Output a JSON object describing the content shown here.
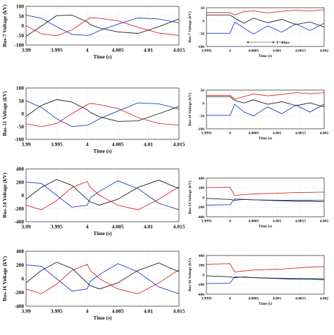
{
  "chart_data": [
    {
      "type": "line",
      "ylabel": "Bus-7 Voltage (kV)",
      "xlabel": "Time (s)",
      "xlim": [
        3.99,
        4.015
      ],
      "ylim": [
        -100,
        100
      ],
      "xticks": [
        "3.99",
        "3.995",
        "4",
        "4.005",
        "4.01",
        "4.015"
      ],
      "yticks": [
        "100",
        "50",
        "0",
        "-50",
        "-100"
      ],
      "grid": true,
      "series": [
        {
          "color": "#d62828",
          "x": [
            3.99,
            3.9925,
            3.995,
            3.9975,
            4.0,
            4.0005,
            4.002,
            4.005,
            4.0083,
            4.0117,
            4.015
          ],
          "y": [
            0,
            -42,
            -52,
            -22,
            32,
            42,
            38,
            25,
            -8,
            -38,
            -50
          ]
        },
        {
          "color": "#1f3fbf",
          "x": [
            3.99,
            3.9925,
            3.995,
            3.9975,
            4.0,
            4.0005,
            4.002,
            4.005,
            4.0083,
            4.0117,
            4.015
          ],
          "y": [
            55,
            38,
            -5,
            -45,
            -50,
            -48,
            -25,
            8,
            40,
            35,
            15
          ]
        },
        {
          "color": "#222222",
          "x": [
            3.99,
            3.9925,
            3.995,
            3.9975,
            4.0,
            4.0005,
            4.002,
            4.005,
            4.0083,
            4.0117,
            4.015
          ],
          "y": [
            -55,
            -2,
            52,
            55,
            20,
            5,
            -12,
            -32,
            -40,
            -5,
            35
          ]
        }
      ]
    },
    {
      "type": "line",
      "ylabel": "Bus-7 Voltage (kV)",
      "xlabel": "Time (s)",
      "xlim": [
        3.9995,
        4.002
      ],
      "ylim": [
        -100,
        50
      ],
      "xticks": [
        "3.9995",
        "4",
        "4.0005",
        "4.001",
        "4.0015",
        "4.002"
      ],
      "yticks": [
        "50",
        "0",
        "-50",
        "-100"
      ],
      "grid": true,
      "annotation": "T=40ms",
      "series": [
        {
          "color": "#d62828",
          "x": [
            3.9995,
            4.0,
            4.0001,
            4.0003,
            4.0005,
            4.0008,
            4.0011,
            4.0014,
            4.0017,
            4.002
          ],
          "y": [
            31,
            31,
            22,
            35,
            38,
            30,
            36,
            40,
            38,
            42
          ]
        },
        {
          "color": "#1f3fbf",
          "x": [
            3.9995,
            4.0,
            4.0001,
            4.0003,
            4.0005,
            4.0008,
            4.0011,
            4.0014,
            4.0017,
            4.002
          ],
          "y": [
            -49,
            -49,
            -5,
            -30,
            -52,
            -20,
            -45,
            -12,
            -38,
            -10
          ]
        },
        {
          "color": "#222222",
          "x": [
            3.9995,
            4.0,
            4.0001,
            4.0003,
            4.0005,
            4.0008,
            4.0011,
            4.0014,
            4.0017,
            4.002
          ],
          "y": [
            22,
            22,
            10,
            -10,
            10,
            -8,
            5,
            -15,
            -5,
            -25
          ]
        }
      ]
    },
    {
      "type": "line",
      "ylabel": "Bus-11 Voltage (kV)",
      "xlabel": "Time (s)",
      "xlim": [
        3.99,
        4.015
      ],
      "ylim": [
        -100,
        100
      ],
      "xticks": [
        "3.99",
        "3.995",
        "4",
        "4.005",
        "4.01",
        "4.015"
      ],
      "yticks": [
        "100",
        "50",
        "0",
        "-50",
        "-100"
      ],
      "grid": true,
      "series": [
        {
          "color": "#d62828",
          "x": [
            3.99,
            3.9925,
            3.995,
            3.9975,
            4.0,
            4.0005,
            4.002,
            4.005,
            4.0083,
            4.0117,
            4.015
          ],
          "y": [
            -40,
            -50,
            -38,
            0,
            35,
            40,
            35,
            20,
            -15,
            -38,
            -45
          ]
        },
        {
          "color": "#1f3fbf",
          "x": [
            3.99,
            3.9925,
            3.995,
            3.9975,
            4.0,
            4.0005,
            4.002,
            4.005,
            4.0083,
            4.0117,
            4.015
          ],
          "y": [
            50,
            25,
            -20,
            -50,
            -45,
            -40,
            -20,
            10,
            42,
            38,
            18
          ]
        },
        {
          "color": "#222222",
          "x": [
            3.99,
            3.9925,
            3.995,
            3.9975,
            4.0,
            4.0005,
            4.002,
            4.005,
            4.0083,
            4.0117,
            4.015
          ],
          "y": [
            -10,
            32,
            55,
            45,
            15,
            5,
            -12,
            -30,
            -28,
            0,
            28
          ]
        }
      ]
    },
    {
      "type": "line",
      "ylabel": "Bus-11 Voltage (kV)",
      "xlabel": "Time (s)",
      "xlim": [
        3.9995,
        4.002
      ],
      "ylim": [
        -100,
        50
      ],
      "xticks": [
        "3.9995",
        "4",
        "4.0005",
        "4.001",
        "4.0015",
        "4.002"
      ],
      "yticks": [
        "50",
        "0",
        "-50",
        "-100"
      ],
      "grid": true,
      "series": [
        {
          "color": "#d62828",
          "x": [
            3.9995,
            4.0,
            4.0001,
            4.0003,
            4.0005,
            4.0008,
            4.0011,
            4.0014,
            4.0017,
            4.002
          ],
          "y": [
            30,
            30,
            15,
            25,
            35,
            28,
            33,
            40,
            36,
            40
          ]
        },
        {
          "color": "#1f3fbf",
          "x": [
            3.9995,
            4.0,
            4.0001,
            4.0003,
            4.0005,
            4.0008,
            4.0011,
            4.0014,
            4.0017,
            4.002
          ],
          "y": [
            -48,
            -48,
            -5,
            -35,
            -50,
            -15,
            -42,
            -8,
            -35,
            -5
          ]
        },
        {
          "color": "#222222",
          "x": [
            3.9995,
            4.0,
            4.0001,
            4.0003,
            4.0005,
            4.0008,
            4.0011,
            4.0014,
            4.0017,
            4.002
          ],
          "y": [
            25,
            25,
            10,
            0,
            12,
            -5,
            5,
            -10,
            0,
            -15
          ]
        }
      ]
    },
    {
      "type": "line",
      "ylabel": "Bus-14 Voltage (kV)",
      "xlabel": "Time (s)",
      "xlim": [
        3.99,
        4.015
      ],
      "ylim": [
        -400,
        400
      ],
      "xticks": [
        "3.99",
        "3.995",
        "4",
        "4.005",
        "4.01",
        "4.015"
      ],
      "yticks": [
        "400",
        "200",
        "0",
        "-200",
        "-400"
      ],
      "grid": true,
      "series": [
        {
          "color": "#d62828",
          "x": [
            3.99,
            3.9925,
            3.995,
            3.9975,
            4.0,
            4.0005,
            4.002,
            4.005,
            4.0083,
            4.0117,
            4.015
          ],
          "y": [
            -150,
            -220,
            -80,
            120,
            210,
            120,
            0,
            -150,
            -220,
            -60,
            130
          ]
        },
        {
          "color": "#1f3fbf",
          "x": [
            3.99,
            3.9925,
            3.995,
            3.9975,
            4.0,
            4.0005,
            4.002,
            4.005,
            4.0083,
            4.0117,
            4.015
          ],
          "y": [
            200,
            180,
            0,
            -180,
            -150,
            -40,
            60,
            220,
            100,
            -120,
            -220
          ]
        },
        {
          "color": "#222222",
          "x": [
            3.99,
            3.9925,
            3.995,
            3.9975,
            4.0,
            4.0005,
            4.002,
            4.005,
            4.0083,
            4.0117,
            4.015
          ],
          "y": [
            -60,
            120,
            240,
            150,
            -60,
            -100,
            -150,
            -60,
            120,
            230,
            100
          ]
        }
      ]
    },
    {
      "type": "line",
      "ylabel": "Bus-14 Voltage (kV)",
      "xlabel": "Time (s)",
      "xlim": [
        3.9995,
        4.002
      ],
      "ylim": [
        -400,
        400
      ],
      "xticks": [
        "3.9995",
        "4",
        "4.0005",
        "4.001",
        "4.0015",
        "4.002"
      ],
      "yticks": [
        "400",
        "200",
        "0",
        "-200",
        "-400"
      ],
      "grid": true,
      "series": [
        {
          "color": "#d62828",
          "x": [
            3.9995,
            4.0,
            4.0001,
            4.0003,
            4.0005,
            4.0008,
            4.0011,
            4.0014,
            4.0017,
            4.002
          ],
          "y": [
            200,
            210,
            40,
            60,
            70,
            80,
            90,
            100,
            105,
            110
          ]
        },
        {
          "color": "#1f3fbf",
          "x": [
            3.9995,
            4.0,
            4.0001,
            4.0003,
            4.0005,
            4.0008,
            4.0011,
            4.0014,
            4.0017,
            4.002
          ],
          "y": [
            -160,
            -150,
            -30,
            -40,
            -50,
            -55,
            -60,
            -60,
            -60,
            -60
          ]
        },
        {
          "color": "#222222",
          "x": [
            3.9995,
            4.0,
            4.0001,
            4.0003,
            4.0005,
            4.0008,
            4.0011,
            4.0014,
            4.0017,
            4.002
          ],
          "y": [
            -20,
            -40,
            -60,
            -40,
            -50,
            -60,
            -70,
            -80,
            -80,
            -90
          ]
        }
      ]
    },
    {
      "type": "line",
      "ylabel": "Bus-16 Voltage (kV)",
      "xlabel": "Time (s)",
      "xlim": [
        3.99,
        4.015
      ],
      "ylim": [
        -400,
        400
      ],
      "xticks": [
        "3.99",
        "3.995",
        "4",
        "4.005",
        "4.01",
        "4.015"
      ],
      "yticks": [
        "400",
        "200",
        "0",
        "-200",
        "-400"
      ],
      "grid": true,
      "series": [
        {
          "color": "#d62828",
          "x": [
            3.99,
            3.9925,
            3.995,
            3.9975,
            4.0,
            4.0005,
            4.002,
            4.005,
            4.0083,
            4.0117,
            4.015
          ],
          "y": [
            -150,
            -220,
            -80,
            120,
            210,
            120,
            0,
            -150,
            -220,
            -60,
            130
          ]
        },
        {
          "color": "#1f3fbf",
          "x": [
            3.99,
            3.9925,
            3.995,
            3.9975,
            4.0,
            4.0005,
            4.002,
            4.005,
            4.0083,
            4.0117,
            4.015
          ],
          "y": [
            200,
            180,
            0,
            -180,
            -150,
            -40,
            60,
            220,
            100,
            -120,
            -220
          ]
        },
        {
          "color": "#222222",
          "x": [
            3.99,
            3.9925,
            3.995,
            3.9975,
            4.0,
            4.0005,
            4.002,
            4.005,
            4.0083,
            4.0117,
            4.015
          ],
          "y": [
            -60,
            120,
            240,
            150,
            -60,
            -100,
            -150,
            -60,
            120,
            230,
            100
          ]
        }
      ]
    },
    {
      "type": "line",
      "ylabel": "Bus-16 Voltage (kV)",
      "xlabel": "Time (s)",
      "xlim": [
        3.9995,
        4.002
      ],
      "ylim": [
        -400,
        400
      ],
      "xticks": [
        "3.9995",
        "4",
        "4.0005",
        "4.001",
        "4.0015",
        "4.002"
      ],
      "yticks": [
        "400",
        "200",
        "0",
        "-200",
        "-400"
      ],
      "grid": true,
      "series": [
        {
          "color": "#d62828",
          "x": [
            3.9995,
            4.0,
            4.0001,
            4.0003,
            4.0005,
            4.0008,
            4.0011,
            4.0014,
            4.0017,
            4.002
          ],
          "y": [
            220,
            230,
            60,
            80,
            100,
            110,
            120,
            140,
            160,
            170
          ]
        },
        {
          "color": "#1f3fbf",
          "x": [
            3.9995,
            4.0,
            4.0001,
            4.0003,
            4.0005,
            4.0008,
            4.0011,
            4.0014,
            4.0017,
            4.002
          ],
          "y": [
            -180,
            -170,
            -40,
            -50,
            -60,
            -65,
            -70,
            -75,
            -80,
            -80
          ]
        },
        {
          "color": "#222222",
          "x": [
            3.9995,
            4.0,
            4.0001,
            4.0003,
            4.0005,
            4.0008,
            4.0011,
            4.0014,
            4.0017,
            4.002
          ],
          "y": [
            -20,
            -40,
            -60,
            -40,
            -60,
            -70,
            -80,
            -90,
            -90,
            -100
          ]
        }
      ]
    }
  ]
}
